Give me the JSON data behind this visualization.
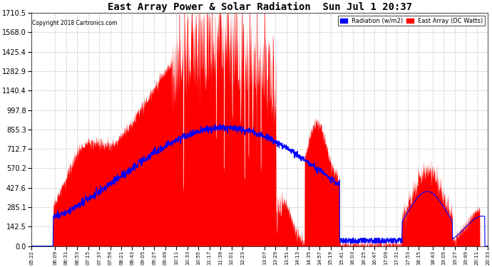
{
  "title": "East Array Power & Solar Radiation  Sun Jul 1 20:37",
  "copyright": "Copyright 2018 Cartronics.com",
  "legend_labels": [
    "Radiation (w/m2)",
    "East Array (DC Watts)"
  ],
  "legend_bg_colors": [
    "blue",
    "red"
  ],
  "ylim": [
    0,
    1710.5
  ],
  "yticks": [
    0.0,
    142.5,
    285.1,
    427.6,
    570.2,
    712.7,
    855.3,
    997.8,
    1140.4,
    1282.9,
    1425.4,
    1568.0,
    1710.5
  ],
  "bg_color": "white",
  "plot_bg_color": "white",
  "grid_color": "#aaaaaa",
  "fill_color": "red",
  "line_color": "blue",
  "xtick_labels": [
    "05:22",
    "06:09",
    "06:31",
    "06:53",
    "07:15",
    "07:37",
    "07:59",
    "08:21",
    "08:43",
    "09:05",
    "09:27",
    "09:49",
    "10:11",
    "10:33",
    "10:55",
    "11:17",
    "11:39",
    "12:01",
    "12:23",
    "13:07",
    "13:29",
    "13:51",
    "14:13",
    "14:35",
    "14:57",
    "15:19",
    "15:41",
    "16:03",
    "16:25",
    "16:47",
    "17:09",
    "17:31",
    "17:53",
    "18:15",
    "18:43",
    "19:05",
    "19:27",
    "19:49",
    "20:11",
    "20:33"
  ]
}
